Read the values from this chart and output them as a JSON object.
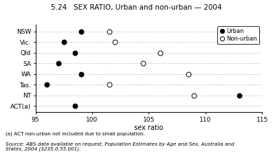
{
  "title": "5.24   SEX RATIO, Urban and non-urban — 2004",
  "xlabel": "sex ratio",
  "states": [
    "NSW",
    "Vic.",
    "Qld",
    "SA",
    "WA",
    "Tas.",
    "NT",
    "ACT(a)"
  ],
  "urban": [
    99.0,
    97.5,
    98.5,
    97.0,
    99.0,
    96.0,
    113.0,
    98.5
  ],
  "nonurban": [
    101.5,
    102.0,
    106.0,
    104.5,
    108.5,
    101.5,
    109.0,
    null
  ],
  "xlim": [
    95,
    115
  ],
  "xticks": [
    95,
    100,
    105,
    110,
    115
  ],
  "legend_urban": "Urban",
  "legend_nonurban": "Non-urban",
  "background_color": "white",
  "grid_color": "#aaaaaa",
  "footnote1": "(a) ACT non-urban not included due to small population.",
  "footnote2": "Source: ABS data available on request, Population Estimates by Age and Sex, Australia and\nStates, 2004 (3235.0.55.001)."
}
